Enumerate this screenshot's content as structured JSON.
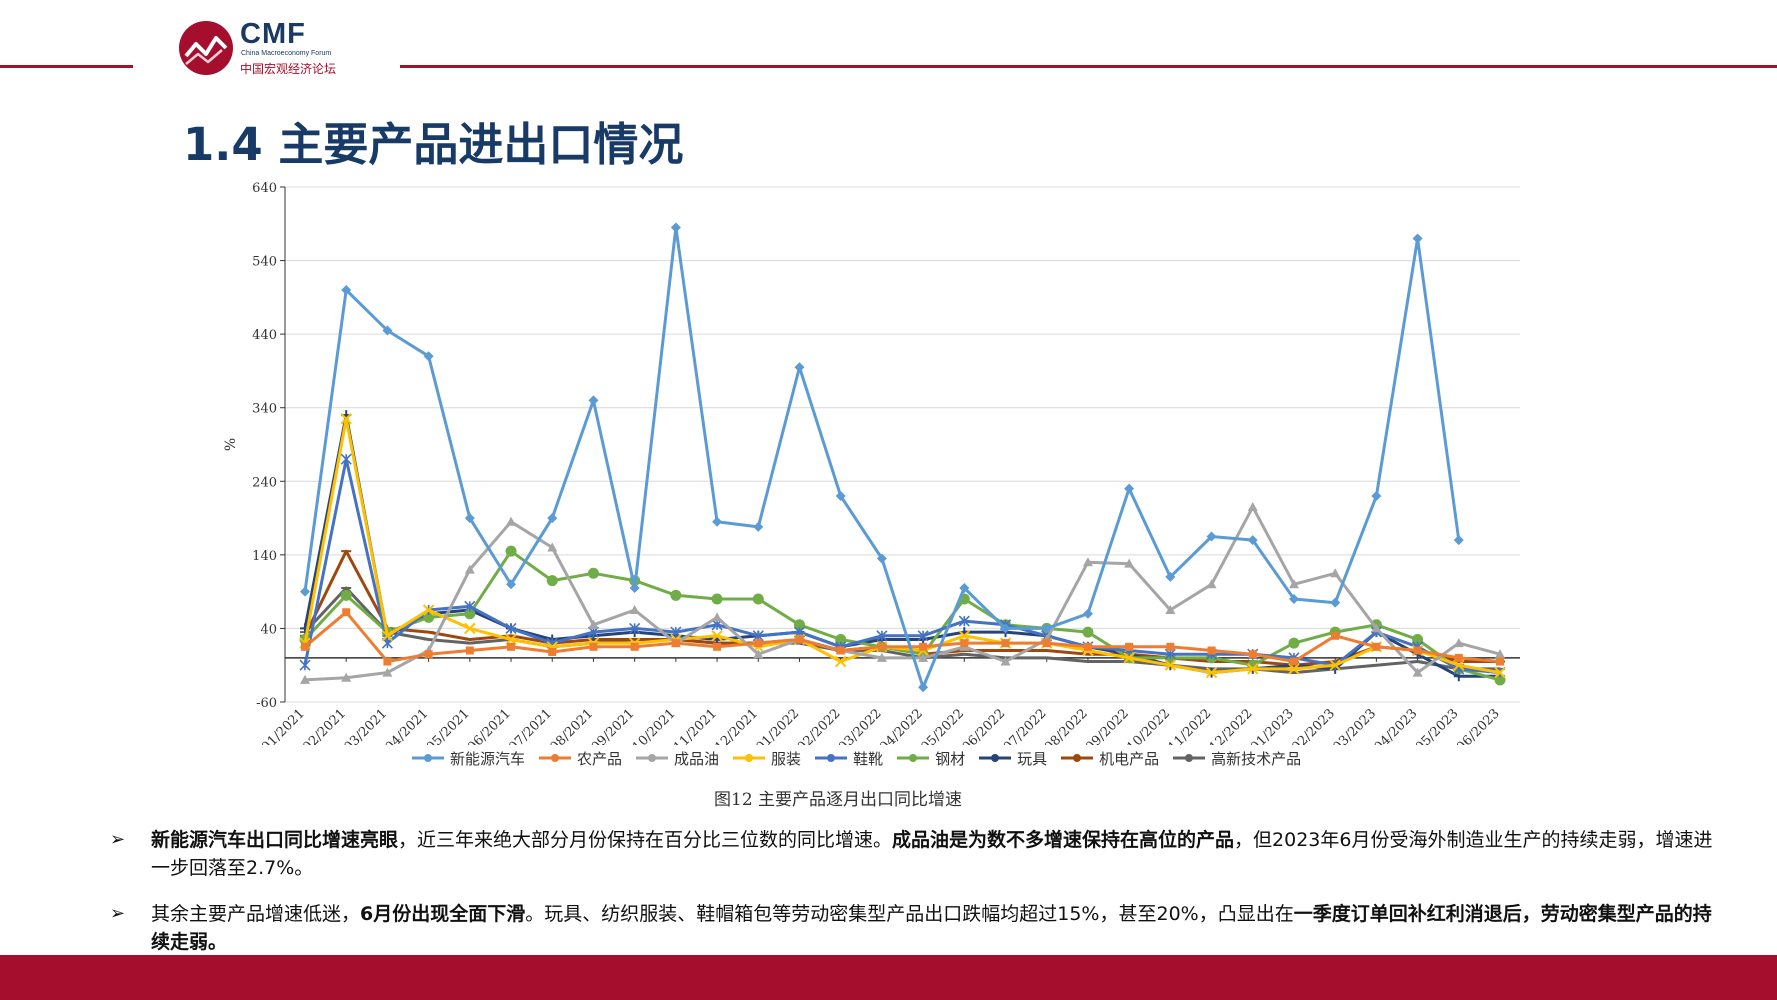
{
  "header": {
    "logo_text": "CMF",
    "logo_subtext": "China Macroeconomy Forum",
    "logo_cn": "中国宏观经济论坛",
    "brand_color": "#a50f2d",
    "title_color": "#173a66"
  },
  "slide_title": "1.4 主要产品进出口情况",
  "chart_caption": "图12   主要产品逐月出口同比增速",
  "bullets": [
    {
      "parts": [
        {
          "text": "新能源汽车出口同比增速亮眼",
          "bold": true
        },
        {
          "text": "，近三年来绝大部分月份保持在百分比三位数的同比增速。",
          "bold": false
        },
        {
          "text": "成品油是为数不多增速保持在高位的产品",
          "bold": true
        },
        {
          "text": "，但2023年6月份受海外制造业生产的持续走弱，增速进一步回落至2.7%。",
          "bold": false
        }
      ]
    },
    {
      "parts": [
        {
          "text": "其余主要产品增速低迷，",
          "bold": false
        },
        {
          "text": "6月份出现全面下滑",
          "bold": true
        },
        {
          "text": "。玩具、纺织服装、鞋帽箱包等劳动密集型产品出口跌幅均超过15%，甚至20%，凸显出在",
          "bold": false
        },
        {
          "text": "一季度订单回补红利消退后，劳动密集型产品的持续走弱。",
          "bold": true
        }
      ]
    }
  ],
  "chart_data": {
    "type": "line",
    "ylabel": "%",
    "ylim": [
      -60,
      640
    ],
    "yticks": [
      -60,
      40,
      140,
      240,
      340,
      440,
      540,
      640
    ],
    "categories": [
      "01/2021",
      "02/2021",
      "03/2021",
      "04/2021",
      "05/2021",
      "06/2021",
      "07/2021",
      "08/2021",
      "09/2021",
      "10/2021",
      "11/2021",
      "12/2021",
      "01/2022",
      "02/2022",
      "03/2022",
      "04/2022",
      "05/2022",
      "06/2022",
      "07/2022",
      "08/2022",
      "09/2022",
      "10/2022",
      "11/2022",
      "12/2022",
      "01/2023",
      "02/2023",
      "03/2023",
      "04/2023",
      "05/2023",
      "06/2023"
    ],
    "legend_position": "bottom",
    "grid": true,
    "series": [
      {
        "name": "新能源汽车",
        "color": "#5b9bd5",
        "marker": "diamond",
        "values": [
          90,
          500,
          445,
          410,
          190,
          100,
          190,
          350,
          95,
          585,
          185,
          178,
          395,
          220,
          135,
          -40,
          95,
          40,
          40,
          60,
          230,
          110,
          165,
          160,
          80,
          75,
          220,
          570,
          160,
          null
        ]
      },
      {
        "name": "农产品",
        "color": "#ed7d31",
        "marker": "square",
        "values": [
          15,
          62,
          -5,
          5,
          10,
          15,
          8,
          15,
          15,
          20,
          15,
          20,
          25,
          10,
          15,
          15,
          20,
          20,
          20,
          15,
          15,
          15,
          10,
          5,
          -5,
          30,
          15,
          10,
          0,
          -5
        ]
      },
      {
        "name": "成品油",
        "color": "#a5a5a5",
        "marker": "triangle",
        "values": [
          -30,
          -27,
          -20,
          10,
          120,
          185,
          150,
          45,
          65,
          20,
          55,
          5,
          25,
          10,
          0,
          0,
          15,
          -5,
          25,
          130,
          128,
          65,
          100,
          205,
          100,
          115,
          40,
          -20,
          20,
          5
        ]
      },
      {
        "name": "服装",
        "color": "#ffc000",
        "marker": "x",
        "values": [
          20,
          325,
          30,
          65,
          40,
          25,
          15,
          20,
          20,
          25,
          30,
          15,
          25,
          -5,
          15,
          10,
          30,
          20,
          20,
          10,
          0,
          -10,
          -20,
          -15,
          -15,
          -10,
          15,
          10,
          -10,
          -20
        ]
      },
      {
        "name": "鞋靴",
        "color": "#4472c4",
        "marker": "asterisk",
        "values": [
          -10,
          270,
          20,
          65,
          70,
          40,
          20,
          35,
          40,
          35,
          45,
          30,
          35,
          15,
          30,
          30,
          50,
          45,
          30,
          15,
          10,
          5,
          5,
          5,
          0,
          -10,
          35,
          15,
          -15,
          -20
        ]
      },
      {
        "name": "钢材",
        "color": "#70ad47",
        "marker": "circle",
        "values": [
          25,
          85,
          35,
          55,
          60,
          145,
          105,
          115,
          105,
          85,
          80,
          80,
          45,
          25,
          15,
          5,
          80,
          45,
          40,
          35,
          0,
          0,
          0,
          -10,
          20,
          35,
          45,
          25,
          -15,
          -30
        ]
      },
      {
        "name": "玩具",
        "color": "#264478",
        "marker": "plus",
        "values": [
          40,
          330,
          30,
          60,
          65,
          40,
          25,
          30,
          35,
          30,
          25,
          30,
          35,
          15,
          25,
          25,
          35,
          35,
          30,
          15,
          5,
          -10,
          -20,
          -15,
          -10,
          -15,
          35,
          5,
          -25,
          -25
        ]
      },
      {
        "name": "机电产品",
        "color": "#9e480e",
        "marker": "dash",
        "values": [
          30,
          145,
          40,
          35,
          25,
          30,
          20,
          25,
          25,
          25,
          20,
          20,
          25,
          10,
          15,
          5,
          10,
          10,
          10,
          5,
          5,
          0,
          -5,
          -5,
          -10,
          -5,
          15,
          10,
          -5,
          -5
        ]
      },
      {
        "name": "高新技术产品",
        "color": "#636363",
        "marker": "dash",
        "values": [
          35,
          95,
          35,
          25,
          20,
          25,
          15,
          20,
          25,
          25,
          20,
          20,
          20,
          10,
          10,
          0,
          5,
          0,
          0,
          -5,
          -5,
          -10,
          -15,
          -15,
          -20,
          -15,
          -10,
          -5,
          -15,
          -15
        ]
      }
    ]
  }
}
